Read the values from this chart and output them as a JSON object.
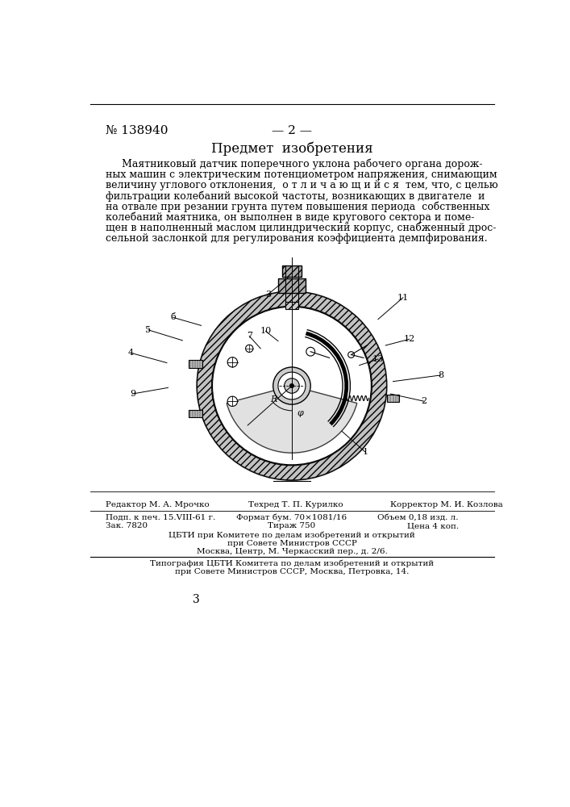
{
  "patent_number": "№ 138940",
  "page_number": "— 2 —",
  "section_title": "Предмет  изобретения",
  "body_text": [
    "     Маятниковый датчик поперечного уклона рабочего органа дорож-",
    "ных машин с электрическим потенциометром напряжения, снимающим",
    "величину углового отклонения,  о т л и ч а ю щ и й с я  тем, что, с целью",
    "фильтрации колебаний высокой частоты, возникающих в двигателе  и",
    "на отвале при резании грунта путем повышения периода  собственных",
    "колебаний маятника, он выполнен в виде кругового сектора и поме-",
    "щен в наполненный маслом цилиндрический корпус, снабженный дрос-",
    "сельной заслонкой для регулирования коэффициента демпфирования."
  ],
  "footer_line1_col1": "Редактор М. А. Мрочко",
  "footer_line1_col2": "Техред Т. П. Курилко",
  "footer_line1_col3": "Корректор М. И. Козлова",
  "footer_line2_col1": "Подп. к печ. 15.VIII-61 г.",
  "footer_line2_col2": "Формат бум. 70×1081/16",
  "footer_line2_col3": "Объем 0,18 изд. л.",
  "footer_line3_col1": "Зак. 7820",
  "footer_line3_col2": "Тираж 750",
  "footer_line3_col3": "Цена 4 коп.",
  "footer_block1_line1": "ЦБТИ при Комитете по делам изобретений и открытий",
  "footer_block1_line2": "при Совете Министров СССР",
  "footer_block1_line3": "Москва, Центр, М. Черкасский пер., д. 2/6.",
  "footer_block2_line1": "Типография ЦБТИ Комитета по делам изобретений и открытий",
  "footer_block2_line2": "при Совете Министров СССР, Москва, Петровка, 14.",
  "page_num_bottom": "3",
  "bg_color": "#ffffff",
  "text_color": "#000000",
  "font_size_body": 9,
  "font_size_footer": 7.5,
  "font_size_header": 11,
  "font_size_title": 12
}
